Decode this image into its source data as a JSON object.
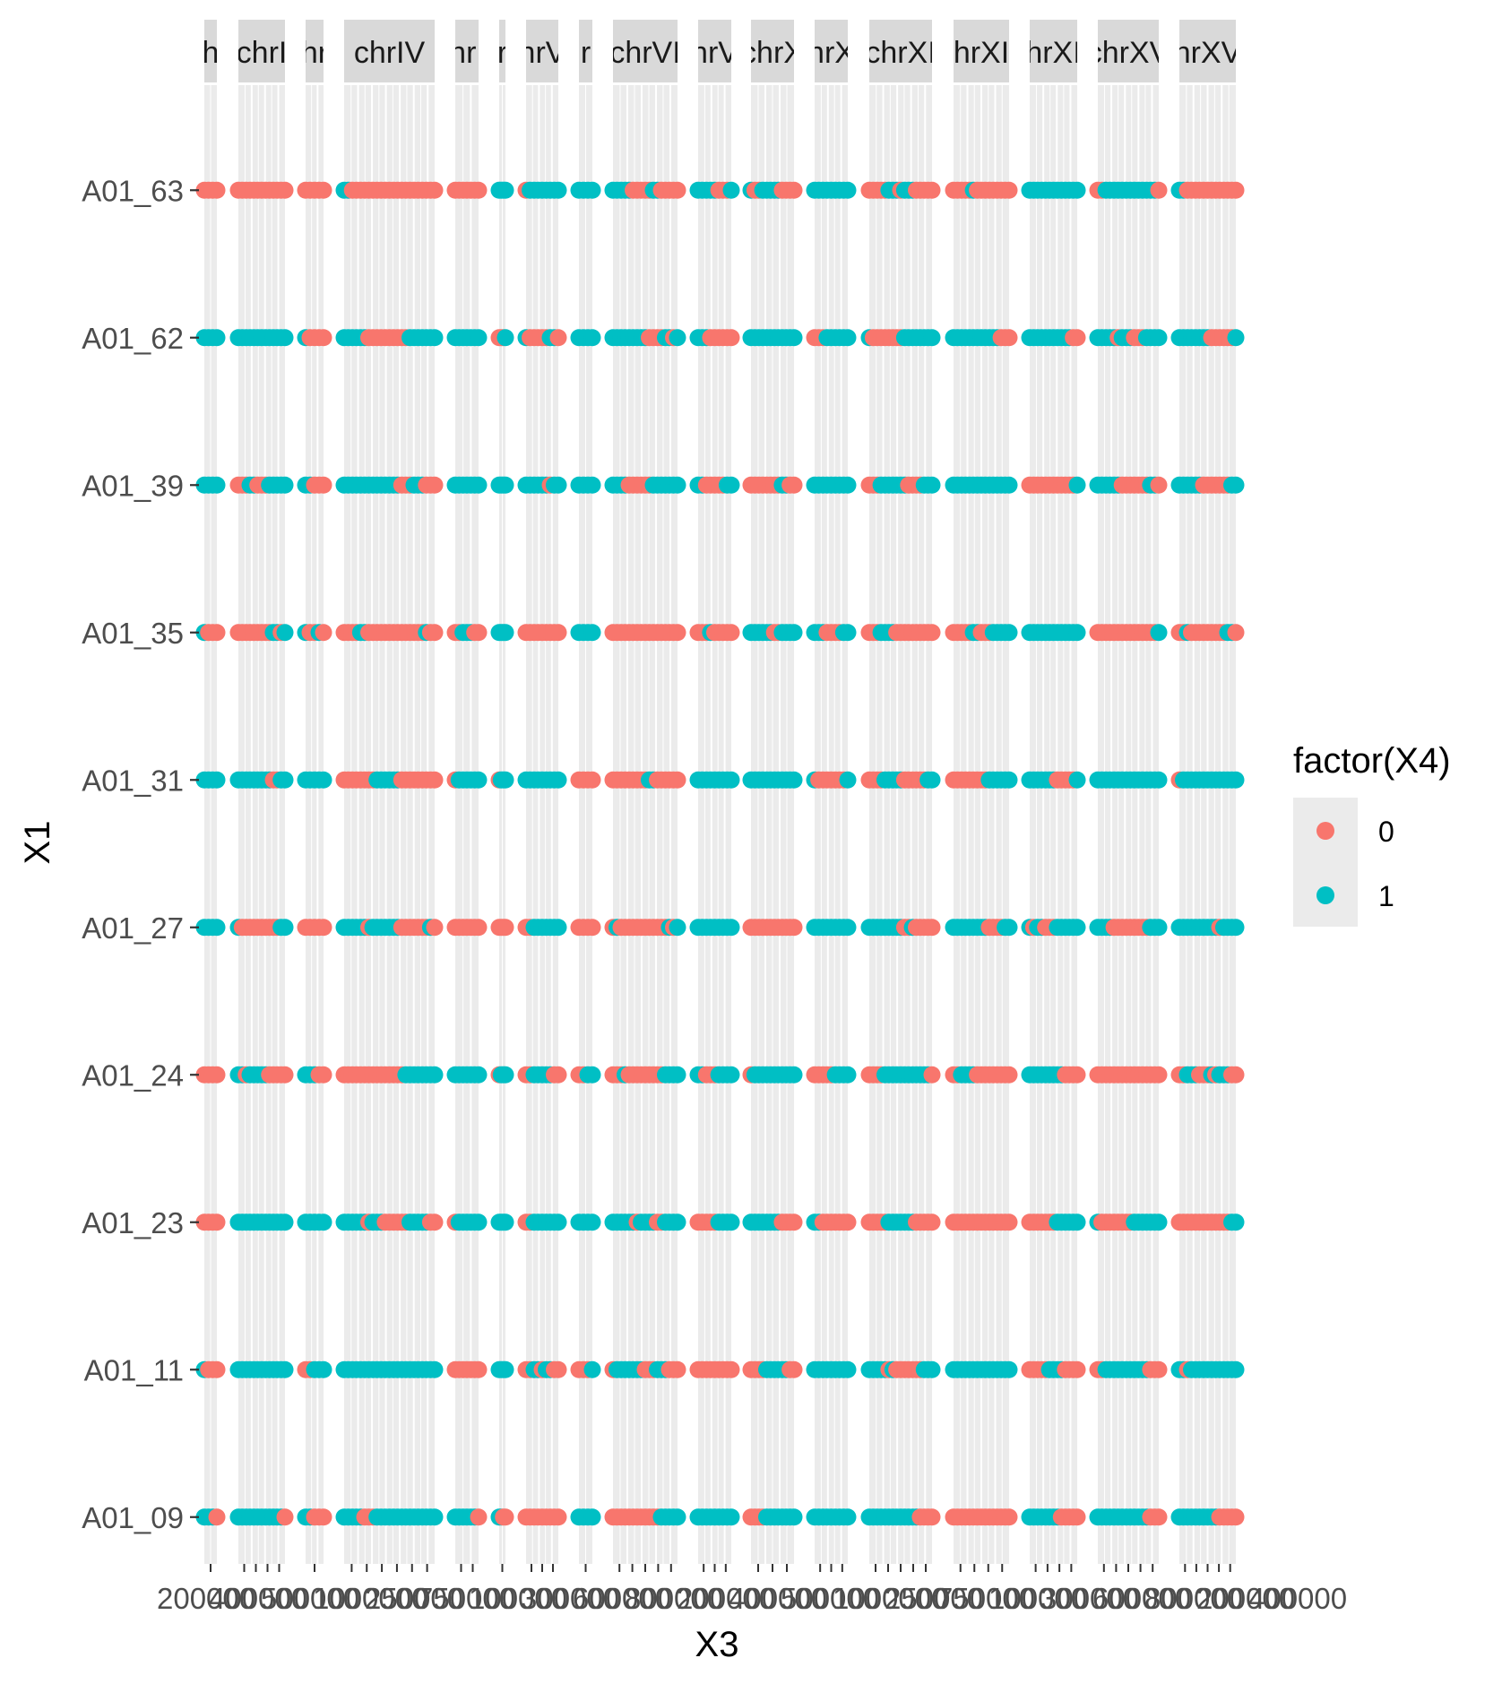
{
  "chart_data": {
    "type": "scatter",
    "xlabel": "X3",
    "ylabel": "X1",
    "legend": {
      "title": "factor(X4)",
      "placement": "right",
      "entries": [
        {
          "label": "0",
          "color": "#F8766D"
        },
        {
          "label": "1",
          "color": "#00BFC4"
        }
      ]
    },
    "y_categories": [
      "A01_63",
      "A01_62",
      "A01_39",
      "A01_35",
      "A01_31",
      "A01_27",
      "A01_24",
      "A01_23",
      "A01_11",
      "A01_09"
    ],
    "facets": [
      {
        "label": "chrI",
        "shown_label": "h",
        "xlim": [
          0,
          230000
        ]
      },
      {
        "label": "chrII",
        "shown_label": "chrI",
        "xlim": [
          0,
          813000
        ]
      },
      {
        "label": "chrIII",
        "shown_label": "hr",
        "xlim": [
          0,
          316000
        ]
      },
      {
        "label": "chrIV",
        "shown_label": "chrIV",
        "xlim": [
          0,
          1531000
        ]
      },
      {
        "label": "chrV",
        "shown_label": "hrI",
        "xlim": [
          0,
          576000
        ]
      },
      {
        "label": "chrVI",
        "shown_label": "r",
        "xlim": [
          0,
          270000
        ]
      },
      {
        "label": "chrVII",
        "shown_label": "hrV",
        "xlim": [
          0,
          1090000
        ]
      },
      {
        "label": "chrVIII",
        "shown_label": "r",
        "xlim": [
          0,
          562000
        ]
      },
      {
        "label": "chrIX",
        "shown_label": "chrVI",
        "xlim": [
          0,
          439000
        ]
      },
      {
        "label": "chrX",
        "shown_label": "hrV",
        "xlim": [
          0,
          745000
        ]
      },
      {
        "label": "chrXI",
        "shown_label": "chrX",
        "xlim": [
          0,
          666000
        ]
      },
      {
        "label": "chrXII",
        "shown_label": "hrX",
        "xlim": [
          0,
          1078000
        ]
      },
      {
        "label": "chrXIII",
        "shown_label": "chrXI",
        "xlim": [
          0,
          924000
        ]
      },
      {
        "label": "chrXIV",
        "shown_label": "hrXI",
        "xlim": [
          0,
          784000
        ]
      },
      {
        "label": "chrXV",
        "shown_label": "hrXI",
        "xlim": [
          0,
          1091000
        ]
      },
      {
        "label": "chrXVI",
        "shown_label": "chrXV",
        "xlim": [
          0,
          948000
        ]
      },
      {
        "label": "chrXVII",
        "shown_label": "hrXV",
        "xlim": [
          0,
          1200000
        ]
      }
    ],
    "x_tick_labels_note": "tick labels overlap and are illegible",
    "x_tick_labels": [
      "200000",
      "400000",
      "500000",
      "1000000",
      "250000",
      "750000",
      "100000",
      "300000",
      "600000",
      "800000"
    ],
    "grid": true
  }
}
